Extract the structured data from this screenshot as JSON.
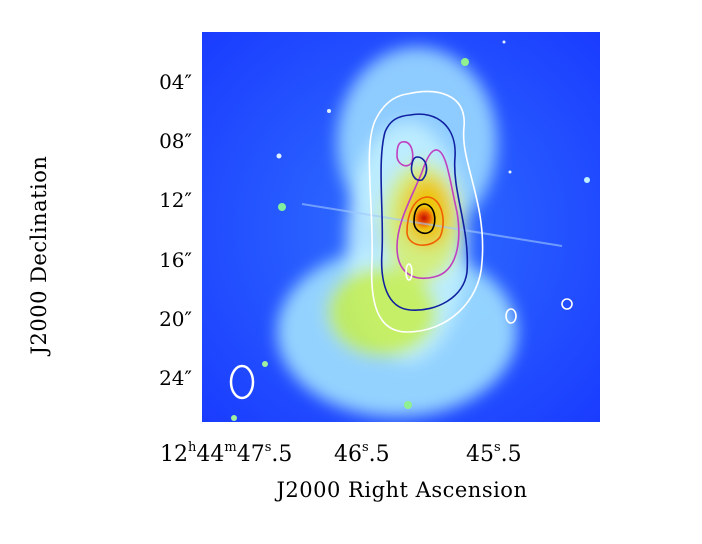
{
  "ylabel": "J2000 Declination",
  "xlabel": "J2000 Right Ascension",
  "yticks": [
    "04″",
    "08″",
    "12″",
    "16″",
    "20″",
    "24″"
  ],
  "xticks": [
    {
      "pre": "12",
      "h": "h",
      "m1": "44",
      "m": "m",
      "s1": "47",
      "s": "s",
      "post": ".5"
    },
    {
      "pre": "46",
      "s": "s",
      "post": ".5"
    },
    {
      "pre": "45",
      "s": "s",
      "post": ".5"
    }
  ],
  "colors": {
    "background": "#1a40ff",
    "nebula_inner": "#f0c000",
    "core": "#d02000",
    "contour_white": "#ffffff",
    "contour_blue": "#1020a0",
    "contour_magenta": "#c040c0",
    "contour_black": "#000000"
  }
}
